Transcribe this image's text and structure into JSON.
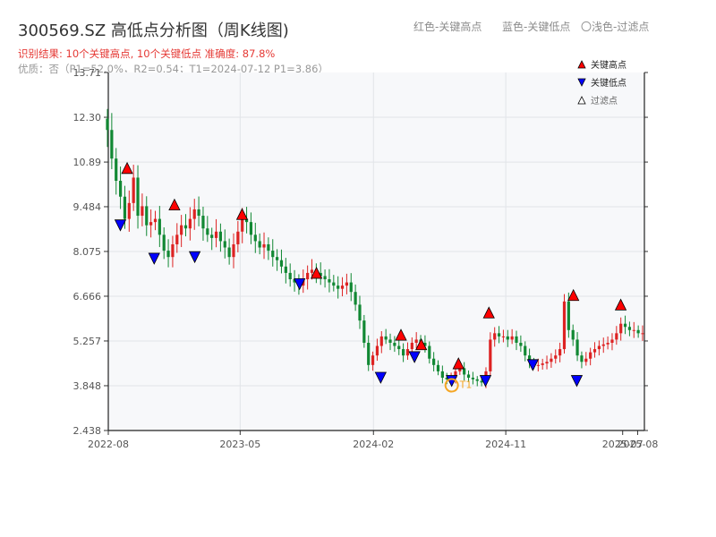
{
  "header": {
    "title": "300569.SZ 高低点分析图（周K线图)",
    "summary": "识别结果: 10个关键高点, 10个关键低点  准确度: 87.8%",
    "quality": "优质：否（P1=52.0%，R2=0.54；T1=2024-07-12 P1=3.86）",
    "top_legend": {
      "red": "红色-关键高点",
      "blue": "蓝色-关键低点",
      "light": "〇浅色-过滤点"
    }
  },
  "chart_data": {
    "type": "candlestick",
    "title": "300569.SZ 高低点分析图（周K线图)",
    "y_ticks": [
      "2.438",
      "3.848",
      "5.257",
      "6.666",
      "8.075",
      "9.484",
      "10.89",
      "12.30",
      "13.71"
    ],
    "ylim": [
      2.438,
      13.71
    ],
    "x_ticks": [
      "2022-08",
      "2023-05",
      "2024-02",
      "2024-11",
      "2025-07",
      "2025-08"
    ],
    "x_range": [
      "2022-08-01",
      "2025-08-15"
    ],
    "grid": true,
    "legend": {
      "position": "top-right",
      "items": [
        {
          "label": "关键高点",
          "color": "#ff0000",
          "marker": "triangle-up"
        },
        {
          "label": "关键低点",
          "color": "#0000ff",
          "marker": "triangle-down"
        },
        {
          "label": "过滤点",
          "color": "#ffffff",
          "marker": "triangle-up-hollow"
        }
      ]
    },
    "colors": {
      "up": "#dd2222",
      "down": "#118833",
      "high": "#ff0000",
      "low": "#0000ff",
      "t1": "#f5a623"
    },
    "weekly_close": [
      11.9,
      11.0,
      10.3,
      9.8,
      9.1,
      9.6,
      10.4,
      9.2,
      9.5,
      8.9,
      9.0,
      9.1,
      8.6,
      8.1,
      7.9,
      8.3,
      8.6,
      8.9,
      8.8,
      9.1,
      9.4,
      9.2,
      8.8,
      8.6,
      8.5,
      8.7,
      8.4,
      8.2,
      7.9,
      8.3,
      8.7,
      9.1,
      9.0,
      8.6,
      8.4,
      8.2,
      8.3,
      8.1,
      7.9,
      7.8,
      7.6,
      7.4,
      7.2,
      7.1,
      7.0,
      7.2,
      7.4,
      7.5,
      7.4,
      7.3,
      7.2,
      7.1,
      7.0,
      6.9,
      7.0,
      7.1,
      6.8,
      6.4,
      5.9,
      5.2,
      4.5,
      4.8,
      5.1,
      5.4,
      5.3,
      5.2,
      5.1,
      5.0,
      4.8,
      5.0,
      5.2,
      5.3,
      5.2,
      5.1,
      4.7,
      4.5,
      4.3,
      4.1,
      4.05,
      4.1,
      4.3,
      4.4,
      4.2,
      4.1,
      4.05,
      4.0,
      3.95,
      4.3,
      5.3,
      5.5,
      5.4,
      5.4,
      5.3,
      5.4,
      5.2,
      5.1,
      4.8,
      4.6,
      4.5,
      4.5,
      4.55,
      4.6,
      4.7,
      4.8,
      5.0,
      6.5,
      5.6,
      5.3,
      4.8,
      4.6,
      4.7,
      4.9,
      5.0,
      5.1,
      5.15,
      5.2,
      5.3,
      5.5,
      5.8,
      5.7,
      5.6,
      5.6,
      5.5,
      5.5
    ],
    "key_highs": [
      {
        "date": "2022-09-09",
        "value": 10.7
      },
      {
        "date": "2022-12-16",
        "value": 9.55
      },
      {
        "date": "2023-05-05",
        "value": 9.25
      },
      {
        "date": "2023-10-06",
        "value": 7.4
      },
      {
        "date": "2024-03-29",
        "value": 5.45
      },
      {
        "date": "2024-05-10",
        "value": 5.15
      },
      {
        "date": "2024-07-26",
        "value": 4.55
      },
      {
        "date": "2024-09-27",
        "value": 6.15
      },
      {
        "date": "2025-03-21",
        "value": 6.7
      },
      {
        "date": "2025-06-27",
        "value": 6.4
      }
    ],
    "key_lows": [
      {
        "date": "2022-08-26",
        "value": 8.9
      },
      {
        "date": "2022-11-04",
        "value": 7.85
      },
      {
        "date": "2023-01-27",
        "value": 7.9
      },
      {
        "date": "2023-09-01",
        "value": 7.05
      },
      {
        "date": "2024-02-16",
        "value": 4.1
      },
      {
        "date": "2024-04-26",
        "value": 4.75
      },
      {
        "date": "2024-07-12",
        "value": 4.0
      },
      {
        "date": "2024-09-20",
        "value": 4.0
      },
      {
        "date": "2024-12-27",
        "value": 4.5
      },
      {
        "date": "2025-03-28",
        "value": 4.0
      }
    ],
    "t1_marker": {
      "label": "T1",
      "date": "2024-07-12",
      "value": 3.86
    }
  }
}
